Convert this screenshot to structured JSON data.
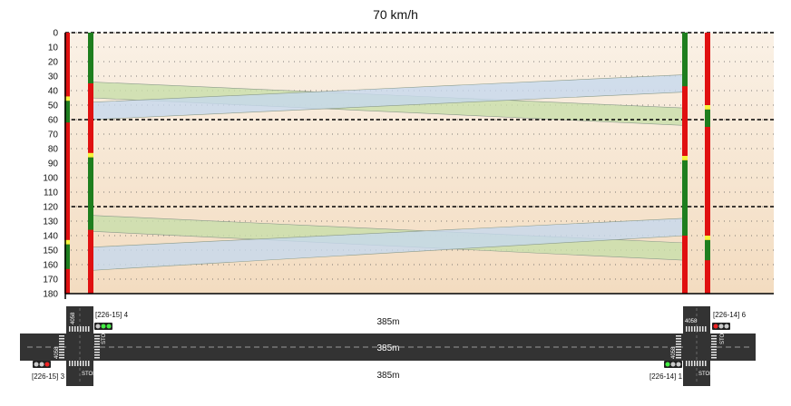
{
  "title": "70 km/h",
  "chart_data": {
    "type": "time-space diagram",
    "title": "70 km/h",
    "y_ticks": [
      "0",
      "10",
      "20",
      "30",
      "40",
      "50",
      "60",
      "70",
      "80",
      "90",
      "100",
      "110",
      "120",
      "130",
      "140",
      "150",
      "160",
      "170",
      "180"
    ],
    "ylim": [
      0,
      180
    ],
    "cycle_lines": [
      0,
      60,
      120
    ],
    "signals": [
      {
        "name": "[226-15] 3",
        "green": [
          [
            47,
            62
          ],
          [
            146,
            163
          ]
        ],
        "yellow": [
          [
            44,
            47
          ],
          [
            143,
            146
          ]
        ]
      },
      {
        "name": "[226-15] 4",
        "green": [
          [
            0,
            35
          ],
          [
            86,
            136
          ]
        ],
        "yellow": [
          [
            83,
            86
          ]
        ]
      },
      {
        "name": "[226-14] 1",
        "green": [
          [
            0,
            37
          ],
          [
            88,
            140
          ]
        ],
        "yellow": [
          [
            85,
            88
          ]
        ]
      },
      {
        "name": "[226-14] 6",
        "green": [
          [
            53,
            65
          ],
          [
            143,
            157
          ]
        ],
        "yellow": [
          [
            50,
            53
          ],
          [
            140,
            143
          ]
        ]
      }
    ],
    "bands": [
      {
        "color": "green",
        "from_start": [
          34,
          45
        ],
        "from_end": [
          52,
          64
        ]
      },
      {
        "color": "blue",
        "from_start": [
          48,
          60
        ],
        "from_end": [
          29,
          41
        ]
      },
      {
        "color": "green",
        "from_start": [
          126,
          137
        ],
        "from_end": [
          145,
          157
        ]
      },
      {
        "color": "blue",
        "from_start": [
          148,
          164
        ],
        "from_end": [
          128,
          140
        ]
      }
    ]
  },
  "distance_labels": [
    "385m",
    "385m",
    "385m"
  ],
  "road_labels": [
    "4058",
    "4058",
    "4058",
    "4058"
  ],
  "stop_labels": [
    "STOP",
    "STOP",
    "STOP",
    "STOP"
  ],
  "signal_heads": [
    {
      "id": "[226-15] 4",
      "lights": [
        "#cccccc",
        "#44ee44",
        "#44ee44"
      ]
    },
    {
      "id": "[226-15] 3",
      "lights": [
        "#cccccc",
        "#cccccc",
        "#ee2222"
      ]
    },
    {
      "id": "[226-14] 1",
      "lights": [
        "#44ee44",
        "#cccccc",
        "#cccccc"
      ]
    },
    {
      "id": "[226-14] 6",
      "lights": [
        "#ee2222",
        "#cccccc",
        "#cccccc"
      ]
    }
  ],
  "colors": {
    "green_phase": "#1e7e1e",
    "red_phase": "#e01010",
    "yellow_phase": "#f5f53c",
    "green_band": "#c8deaa",
    "blue_band": "#c6d8ee",
    "road": "#333333"
  }
}
